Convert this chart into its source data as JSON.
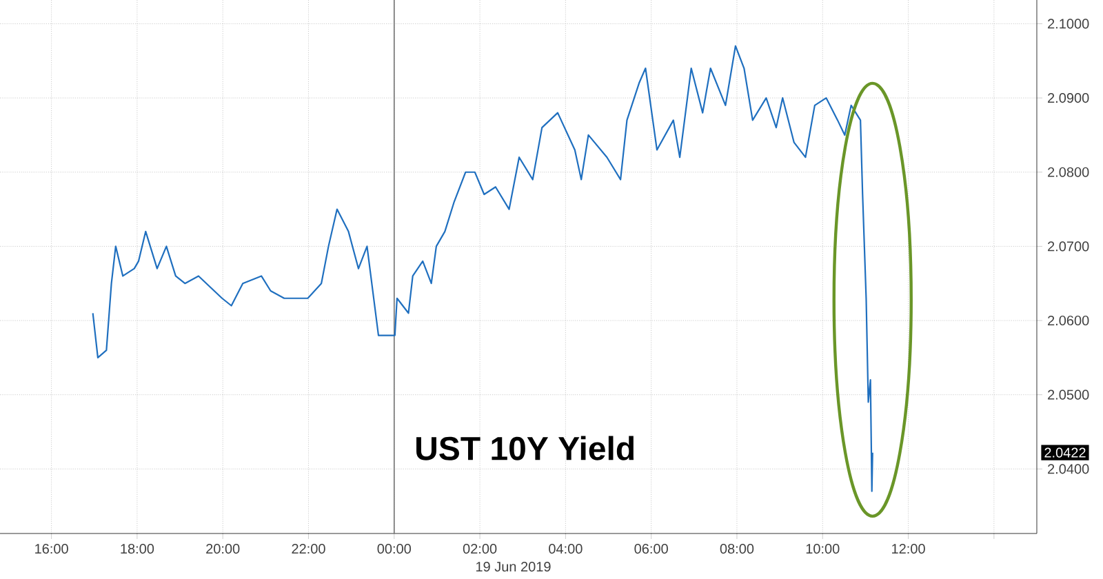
{
  "chart_data": {
    "type": "line",
    "title": "UST 10Y Yield",
    "x": [
      "2019-06-18T16:58",
      "2019-06-18T17:05",
      "2019-06-18T17:17",
      "2019-06-18T17:24",
      "2019-06-18T17:30",
      "2019-06-18T17:40",
      "2019-06-18T17:56",
      "2019-06-18T18:02",
      "2019-06-18T18:12",
      "2019-06-18T18:28",
      "2019-06-18T18:41",
      "2019-06-18T18:54",
      "2019-06-18T19:07",
      "2019-06-18T19:26",
      "2019-06-18T19:59",
      "2019-06-18T20:12",
      "2019-06-18T20:28",
      "2019-06-18T20:54",
      "2019-06-18T21:07",
      "2019-06-18T21:26",
      "2019-06-18T21:59",
      "2019-06-18T22:18",
      "2019-06-18T22:28",
      "2019-06-18T22:40",
      "2019-06-18T22:56",
      "2019-06-18T23:10",
      "2019-06-18T23:22",
      "2019-06-18T23:38",
      "2019-06-19T00:01",
      "2019-06-19T00:04",
      "2019-06-19T00:20",
      "2019-06-19T00:26",
      "2019-06-19T00:40",
      "2019-06-19T00:52",
      "2019-06-19T00:59",
      "2019-06-19T01:11",
      "2019-06-19T01:24",
      "2019-06-19T01:40",
      "2019-06-19T01:53",
      "2019-06-19T02:06",
      "2019-06-19T02:22",
      "2019-06-19T02:41",
      "2019-06-19T02:55",
      "2019-06-19T03:14",
      "2019-06-19T03:27",
      "2019-06-19T03:49",
      "2019-06-19T04:13",
      "2019-06-19T04:22",
      "2019-06-19T04:32",
      "2019-06-19T04:58",
      "2019-06-19T05:17",
      "2019-06-19T05:26",
      "2019-06-19T05:43",
      "2019-06-19T05:52",
      "2019-06-19T06:08",
      "2019-06-19T06:31",
      "2019-06-19T06:40",
      "2019-06-19T06:56",
      "2019-06-19T07:12",
      "2019-06-19T07:23",
      "2019-06-19T07:44",
      "2019-06-19T07:58",
      "2019-06-19T08:10",
      "2019-06-19T08:22",
      "2019-06-19T08:41",
      "2019-06-19T08:55",
      "2019-06-19T09:04",
      "2019-06-19T09:20",
      "2019-06-19T09:36",
      "2019-06-19T09:49",
      "2019-06-19T10:05",
      "2019-06-19T10:21",
      "2019-06-19T10:31",
      "2019-06-19T10:40",
      "2019-06-19T10:53",
      "2019-06-19T10:56",
      "2019-06-19T11:01",
      "2019-06-19T11:04",
      "2019-06-19T11:07",
      "2019-06-19T11:09",
      "2019-06-19T11:10"
    ],
    "values": [
      2.061,
      2.055,
      2.056,
      2.065,
      2.07,
      2.066,
      2.067,
      2.068,
      2.072,
      2.067,
      2.07,
      2.066,
      2.065,
      2.066,
      2.063,
      2.062,
      2.065,
      2.066,
      2.064,
      2.063,
      2.063,
      2.065,
      2.07,
      2.075,
      2.072,
      2.067,
      2.07,
      2.058,
      2.058,
      2.063,
      2.061,
      2.066,
      2.068,
      2.065,
      2.07,
      2.072,
      2.076,
      2.08,
      2.08,
      2.077,
      2.078,
      2.075,
      2.082,
      2.079,
      2.086,
      2.088,
      2.083,
      2.079,
      2.085,
      2.082,
      2.079,
      2.087,
      2.092,
      2.094,
      2.083,
      2.087,
      2.082,
      2.094,
      2.088,
      2.094,
      2.089,
      2.097,
      2.094,
      2.087,
      2.09,
      2.086,
      2.09,
      2.084,
      2.082,
      2.089,
      2.09,
      2.087,
      2.085,
      2.089,
      2.087,
      2.077,
      2.063,
      2.049,
      2.052,
      2.037,
      2.0422
    ],
    "color": "#1f6fbf",
    "xlim": [
      "2019-06-18T14:48",
      "2019-06-19T15:00"
    ],
    "xticks": [
      {
        "value": "2019-06-18T16:00",
        "label": "16:00"
      },
      {
        "value": "2019-06-18T18:00",
        "label": "18:00"
      },
      {
        "value": "2019-06-18T20:00",
        "label": "20:00"
      },
      {
        "value": "2019-06-18T22:00",
        "label": "22:00"
      },
      {
        "value": "2019-06-19T00:00",
        "label": "00:00"
      },
      {
        "value": "2019-06-19T02:00",
        "label": "02:00"
      },
      {
        "value": "2019-06-19T04:00",
        "label": "04:00"
      },
      {
        "value": "2019-06-19T06:00",
        "label": "06:00"
      },
      {
        "value": "2019-06-19T08:00",
        "label": "08:00"
      },
      {
        "value": "2019-06-19T10:00",
        "label": "10:00"
      },
      {
        "value": "2019-06-19T12:00",
        "label": "12:00"
      },
      {
        "value": "2019-06-19T14:00",
        "label": null
      }
    ],
    "ylim": [
      2.0313,
      2.1032
    ],
    "yticks": [
      {
        "value": 2.04,
        "label": "2.0400"
      },
      {
        "value": 2.05,
        "label": "2.0500"
      },
      {
        "value": 2.06,
        "label": "2.0600"
      },
      {
        "value": 2.07,
        "label": "2.0700"
      },
      {
        "value": 2.08,
        "label": "2.0800"
      },
      {
        "value": 2.09,
        "label": "2.0900"
      },
      {
        "value": 2.1,
        "label": "2.1000"
      }
    ],
    "grid": true,
    "ref_lines": [
      {
        "axis": "x",
        "value": "2019-06-19T00:00",
        "color": "#707070"
      }
    ],
    "annotations": [
      "19 Jun 2019",
      "2.0422"
    ]
  }
}
